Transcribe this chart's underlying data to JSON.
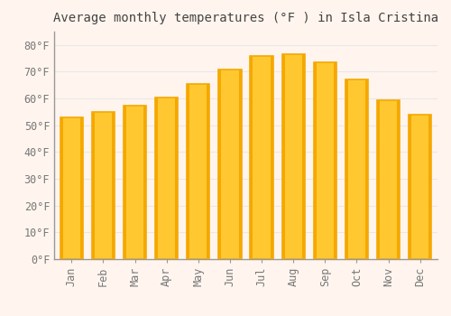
{
  "title": "Average monthly temperatures (°F ) in Isla Cristina",
  "months": [
    "Jan",
    "Feb",
    "Mar",
    "Apr",
    "May",
    "Jun",
    "Jul",
    "Aug",
    "Sep",
    "Oct",
    "Nov",
    "Dec"
  ],
  "values": [
    53,
    55,
    57.5,
    60.5,
    65.5,
    71,
    76,
    76.5,
    73.5,
    67,
    59.5,
    54
  ],
  "bar_color_light": "#FFC830",
  "bar_color_dark": "#F5A800",
  "background_color": "#FFF5EE",
  "grid_color": "#E8E8E8",
  "ylim": [
    0,
    85
  ],
  "yticks": [
    0,
    10,
    20,
    30,
    40,
    50,
    60,
    70,
    80
  ],
  "title_fontsize": 10,
  "tick_fontsize": 8.5
}
